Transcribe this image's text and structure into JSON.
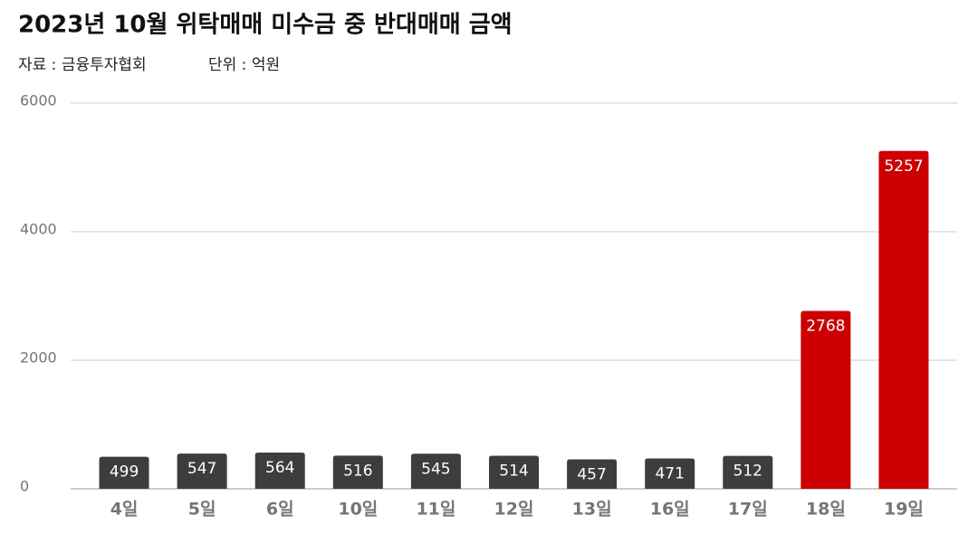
{
  "chart_data": {
    "type": "bar",
    "title": "2023년 10월 위탁매매 미수금 중 반대매매 금액",
    "source": "자료 : 금융투자협회",
    "unit": "단위 : 억원",
    "categories": [
      "4일",
      "5일",
      "6일",
      "10일",
      "11일",
      "12일",
      "13일",
      "16일",
      "17일",
      "18일",
      "19일"
    ],
    "values": [
      499,
      547,
      564,
      516,
      545,
      514,
      457,
      471,
      512,
      2768,
      5257
    ],
    "colors": [
      "#3d3d3d",
      "#3d3d3d",
      "#3d3d3d",
      "#3d3d3d",
      "#3d3d3d",
      "#3d3d3d",
      "#3d3d3d",
      "#3d3d3d",
      "#3d3d3d",
      "#cc0000",
      "#cc0000"
    ],
    "ylim": [
      0,
      6000
    ],
    "yticks": [
      0,
      2000,
      4000,
      6000
    ],
    "grid": true
  }
}
